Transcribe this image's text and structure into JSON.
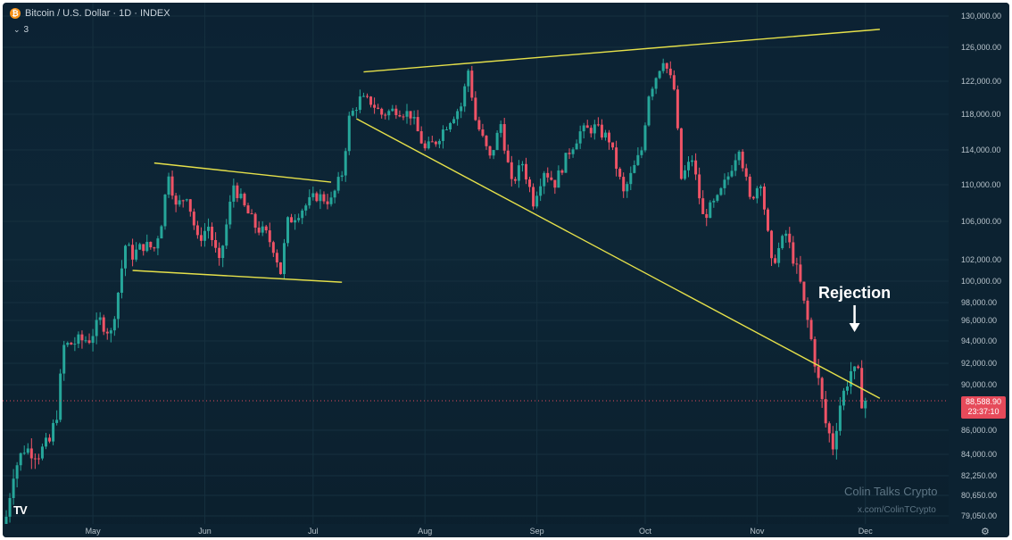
{
  "header": {
    "coin_symbol": "₿",
    "title": "Bitcoin / U.S. Dollar · 1D · INDEX",
    "indicator_count": "3"
  },
  "chart_data": {
    "type": "candlestick",
    "y_ticks": [
      "130,000.00",
      "126,000.00",
      "122,000.00",
      "118,000.00",
      "114,000.00",
      "110,000.00",
      "106,000.00",
      "102,000.00",
      "100,000.00",
      "98,000.00",
      "96,000.00",
      "94,000.00",
      "92,000.00",
      "90,000.00",
      "86,000.00",
      "84,000.00",
      "82,250.00",
      "80,650.00",
      "79,050.00"
    ],
    "y_tick_values": [
      130000,
      126000,
      122000,
      118000,
      114000,
      110000,
      106000,
      102000,
      100000,
      98000,
      96000,
      94000,
      92000,
      90000,
      86000,
      84000,
      82250,
      80650,
      79050
    ],
    "x_ticks": [
      "May",
      "Jun",
      "Jul",
      "Aug",
      "Sep",
      "Oct",
      "Nov",
      "Dec"
    ],
    "x_tick_dates": [
      "2025-05-01",
      "2025-06-01",
      "2025-07-01",
      "2025-08-01",
      "2025-09-01",
      "2025-10-01",
      "2025-11-01",
      "2025-12-01"
    ],
    "first_candle_date": "2025-04-07",
    "last_price": {
      "value": "88,588.90",
      "countdown": "23:37:10"
    },
    "close_path": [
      [
        "2025-04-07",
        79000
      ],
      [
        "2025-04-09",
        82600
      ],
      [
        "2025-04-12",
        84500
      ],
      [
        "2025-04-16",
        84100
      ],
      [
        "2025-04-19",
        85000
      ],
      [
        "2025-04-21",
        87500
      ],
      [
        "2025-04-23",
        93500
      ],
      [
        "2025-04-27",
        94000
      ],
      [
        "2025-04-30",
        94200
      ],
      [
        "2025-05-03",
        96000
      ],
      [
        "2025-05-06",
        94700
      ],
      [
        "2025-05-08",
        99000
      ],
      [
        "2025-05-10",
        103500
      ],
      [
        "2025-05-12",
        102500
      ],
      [
        "2025-05-15",
        103500
      ],
      [
        "2025-05-18",
        103200
      ],
      [
        "2025-05-20",
        106000
      ],
      [
        "2025-05-22",
        111500
      ],
      [
        "2025-05-24",
        107500
      ],
      [
        "2025-05-27",
        109000
      ],
      [
        "2025-05-30",
        104000
      ],
      [
        "2025-06-02",
        105500
      ],
      [
        "2025-06-05",
        101500
      ],
      [
        "2025-06-07",
        105600
      ],
      [
        "2025-06-09",
        110000
      ],
      [
        "2025-06-12",
        107500
      ],
      [
        "2025-06-15",
        105500
      ],
      [
        "2025-06-18",
        104600
      ],
      [
        "2025-06-20",
        103300
      ],
      [
        "2025-06-22",
        100900
      ],
      [
        "2025-06-24",
        105900
      ],
      [
        "2025-06-28",
        107400
      ],
      [
        "2025-07-02",
        108800
      ],
      [
        "2025-07-06",
        108200
      ],
      [
        "2025-07-09",
        111300
      ],
      [
        "2025-07-11",
        117500
      ],
      [
        "2025-07-14",
        119800
      ],
      [
        "2025-07-17",
        119500
      ],
      [
        "2025-07-20",
        118000
      ],
      [
        "2025-07-24",
        118600
      ],
      [
        "2025-07-28",
        118000
      ],
      [
        "2025-08-01",
        114000
      ],
      [
        "2025-08-04",
        115000
      ],
      [
        "2025-08-08",
        117500
      ],
      [
        "2025-08-11",
        119000
      ],
      [
        "2025-08-13",
        123300
      ],
      [
        "2025-08-15",
        117400
      ],
      [
        "2025-08-19",
        113000
      ],
      [
        "2025-08-22",
        116900
      ],
      [
        "2025-08-25",
        110000
      ],
      [
        "2025-08-28",
        112500
      ],
      [
        "2025-08-31",
        108200
      ],
      [
        "2025-09-03",
        111700
      ],
      [
        "2025-09-06",
        110200
      ],
      [
        "2025-09-10",
        113900
      ],
      [
        "2025-09-13",
        116000
      ],
      [
        "2025-09-17",
        116500
      ],
      [
        "2025-09-21",
        115200
      ],
      [
        "2025-09-25",
        109000
      ],
      [
        "2025-09-30",
        114000
      ],
      [
        "2025-10-02",
        120500
      ],
      [
        "2025-10-06",
        124700
      ],
      [
        "2025-10-09",
        121000
      ],
      [
        "2025-10-11",
        110700
      ],
      [
        "2025-10-14",
        113000
      ],
      [
        "2025-10-17",
        106500
      ],
      [
        "2025-10-21",
        108300
      ],
      [
        "2025-10-24",
        111000
      ],
      [
        "2025-10-27",
        114500
      ],
      [
        "2025-10-30",
        108300
      ],
      [
        "2025-11-02",
        110500
      ],
      [
        "2025-11-05",
        101500
      ],
      [
        "2025-11-09",
        104700
      ],
      [
        "2025-11-13",
        99700
      ],
      [
        "2025-11-17",
        92200
      ],
      [
        "2025-11-20",
        86600
      ],
      [
        "2025-11-22",
        84700
      ],
      [
        "2025-11-24",
        88300
      ],
      [
        "2025-11-27",
        91300
      ],
      [
        "2025-11-29",
        90900
      ],
      [
        "2025-12-01",
        86300
      ]
    ],
    "trendlines": [
      {
        "from": [
          "2025-05-18",
          112500
        ],
        "to": [
          "2025-07-06",
          110300
        ]
      },
      {
        "from": [
          "2025-05-12",
          101000
        ],
        "to": [
          "2025-07-09",
          99900
        ]
      },
      {
        "from": [
          "2025-07-15",
          123100
        ],
        "to": [
          "2025-12-05",
          128300
        ]
      },
      {
        "from": [
          "2025-07-13",
          117500
        ],
        "to": [
          "2025-12-05",
          88800
        ]
      }
    ],
    "annotation": {
      "text": "Rejection",
      "date": "2025-11-28",
      "price": 94700
    }
  },
  "watermark": {
    "name": "Colin Talks Crypto",
    "handle": "x.com/ColinTCrypto"
  },
  "logo": "TV",
  "colors": {
    "up": "#26a69a",
    "down": "#ef5366",
    "trendline": "#e5e04a",
    "last_price": "#e64a5a"
  }
}
